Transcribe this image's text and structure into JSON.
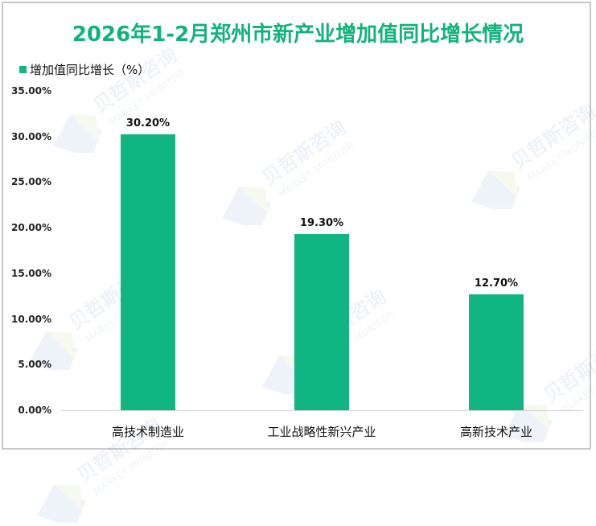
{
  "title": "2026年1-2月郑州市新产业增加值同比增长情况",
  "legend": {
    "label": "增加值同比增长（%）",
    "color": "#10b581"
  },
  "watermark": {
    "cn": "贝哲斯咨询",
    "en": "MARKET MONITOR"
  },
  "colors": {
    "bar": "#10b581",
    "title": "#12b27d",
    "axis": "#d4d4d4"
  },
  "y_ticks": [
    "35.00%",
    "30.00%",
    "25.00%",
    "20.00%",
    "15.00%",
    "10.00%",
    "5.00%",
    "0.00%"
  ],
  "bars": [
    {
      "category": "高技术制造业",
      "value": 30.2,
      "label": "30.20%"
    },
    {
      "category": "工业战略性新兴产业",
      "value": 19.3,
      "label": "19.30%"
    },
    {
      "category": "高新技术产业",
      "value": 12.7,
      "label": "12.70%"
    }
  ],
  "chart_data": {
    "type": "bar",
    "title": "2026年1-2月郑州市新产业增加值同比增长情况",
    "categories": [
      "高技术制造业",
      "工业战略性新兴产业",
      "高新技术产业"
    ],
    "series": [
      {
        "name": "增加值同比增长（%）",
        "values": [
          30.2,
          19.3,
          12.7
        ]
      }
    ],
    "data_labels": [
      "30.20%",
      "19.30%",
      "12.70%"
    ],
    "xlabel": "",
    "ylabel": "",
    "ylim": [
      0,
      35
    ],
    "yticks": [
      "0.00%",
      "5.00%",
      "10.00%",
      "15.00%",
      "20.00%",
      "25.00%",
      "30.00%",
      "35.00%"
    ],
    "grid": false,
    "legend_position": "top-left"
  }
}
